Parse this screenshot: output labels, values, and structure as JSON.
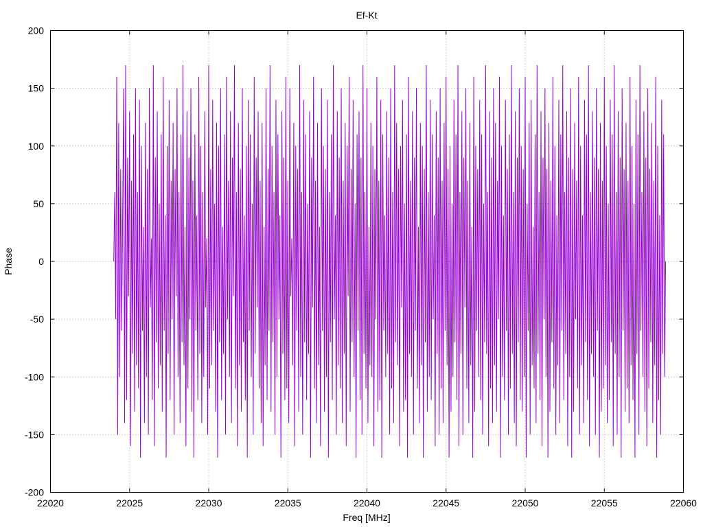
{
  "chart_data": {
    "type": "line",
    "title": "Ef-Kt",
    "xlabel": "Freq [MHz]",
    "ylabel": "Phase",
    "xlim": [
      22020,
      22060
    ],
    "ylim": [
      -200,
      200
    ],
    "xticks": [
      22020,
      22025,
      22030,
      22035,
      22040,
      22045,
      22050,
      22055,
      22060
    ],
    "yticks": [
      -200,
      -150,
      -100,
      -50,
      0,
      50,
      100,
      150,
      200
    ],
    "xtick_labels": [
      "22020",
      "22025",
      "22030",
      "22035",
      "22040",
      "22045",
      "22050",
      "22055",
      "22060"
    ],
    "ytick_labels": [
      "-200",
      "-150",
      "-100",
      "-50",
      "0",
      "50",
      "100",
      "150",
      "200"
    ],
    "grid": true,
    "color": "#9400d3",
    "series": [
      {
        "x_start": 22024.0,
        "x_step": 0.0625,
        "values": [
          0,
          60,
          -50,
          160,
          -150,
          120,
          -100,
          80,
          -60,
          40,
          150,
          -140,
          170,
          -120,
          90,
          -30,
          130,
          -160,
          70,
          -80,
          110,
          -130,
          150,
          -90,
          60,
          -110,
          140,
          -170,
          100,
          -60,
          30,
          -140,
          120,
          -100,
          80,
          -150,
          150,
          -40,
          20,
          -120,
          170,
          -160,
          90,
          -70,
          130,
          -110,
          50,
          -90,
          110,
          -130,
          160,
          -60,
          40,
          -170,
          100,
          -80,
          140,
          -120,
          70,
          -50,
          120,
          -150,
          80,
          -30,
          150,
          -100,
          60,
          -140,
          110,
          -70,
          170,
          -90,
          30,
          -160,
          130,
          -110,
          90,
          -50,
          150,
          -130,
          70,
          -170,
          110,
          -60,
          40,
          -120,
          160,
          -80,
          100,
          -140,
          60,
          -100,
          130,
          -40,
          20,
          -150,
          170,
          -110,
          80,
          -90,
          140,
          -60,
          50,
          -130,
          120,
          -170,
          100,
          -70,
          150,
          -120,
          30,
          -80,
          110,
          -150,
          160,
          -50,
          70,
          -100,
          130,
          -140,
          90,
          -30,
          170,
          -110,
          60,
          -160,
          120,
          -90,
          80,
          -130,
          150,
          -70,
          40,
          -120,
          100,
          -170,
          140,
          -60,
          110,
          -100,
          50,
          -150,
          160,
          -80,
          90,
          -40,
          130,
          -110,
          70,
          -140,
          120,
          -160,
          30,
          -90,
          150,
          -120,
          80,
          -60,
          170,
          -130,
          100,
          -70,
          60,
          -150,
          140,
          -100,
          110,
          -50,
          40,
          -170,
          130,
          -80,
          90,
          -120,
          160,
          -110,
          70,
          -140,
          150,
          -30,
          20,
          -90,
          120,
          -160,
          100,
          -60,
          80,
          -130,
          170,
          -100,
          60,
          -150,
          140,
          -70,
          110,
          -120,
          50,
          -80,
          130,
          -170,
          90,
          -40,
          160,
          -110,
          70,
          -140,
          120,
          -90,
          30,
          -160,
          150,
          -60,
          100,
          -130,
          80,
          -100,
          140,
          -170,
          60,
          -70,
          110,
          -120,
          170,
          -50,
          40,
          -150,
          130,
          -90,
          90,
          -110,
          150,
          -140,
          70,
          -80,
          120,
          -160,
          100,
          -30,
          160,
          -130,
          80,
          -70,
          140,
          -100,
          50,
          -170,
          110,
          -60,
          130,
          -120,
          90,
          -150,
          170,
          -80,
          60,
          -110,
          150,
          -140,
          30,
          -90,
          120,
          -100,
          100,
          -160,
          80,
          -50,
          160,
          -130,
          70,
          -120,
          140,
          -170,
          110,
          -60,
          40,
          -100,
          130,
          -80,
          90,
          -150,
          150,
          -110,
          60,
          -140,
          170,
          -70,
          120,
          -90,
          80,
          -160,
          100,
          -40,
          140,
          -130,
          50,
          -120,
          110,
          -170,
          160,
          -80,
          70,
          -100,
          130,
          -150,
          90,
          -60,
          150,
          -110,
          30,
          -140,
          120,
          -90,
          100,
          -170,
          80,
          -70,
          170,
          -130,
          60,
          -100,
          140,
          -120,
          110,
          -50,
          40,
          -160,
          130,
          -80,
          90,
          -150,
          150,
          -110,
          70,
          -140,
          120,
          -60,
          160,
          -90,
          80,
          -170,
          100,
          -130,
          50,
          -100,
          140,
          -70,
          110,
          -120,
          170,
          -160,
          60,
          -80,
          130,
          -150,
          90,
          -40,
          150,
          -110,
          70,
          -140,
          120,
          -90,
          30,
          -170,
          160,
          -130,
          100,
          -60,
          80,
          -100,
          140,
          -120,
          110,
          -150,
          50,
          -70,
          170,
          -80,
          60,
          -160,
          130,
          -110,
          90,
          -140,
          150,
          -90,
          120,
          -130,
          70,
          -50,
          160,
          -170,
          100,
          -100,
          40,
          -120,
          140,
          -60,
          80,
          -150,
          110,
          -110,
          170,
          -80,
          60,
          -140,
          130,
          -160,
          90,
          -70,
          150,
          -120,
          100,
          -130,
          80,
          -100,
          160,
          -170,
          50,
          -60,
          120,
          -150,
          140,
          -90,
          30,
          -110,
          110,
          -140,
          170,
          -80,
          60,
          -120,
          130,
          -160,
          90,
          -50,
          150,
          -100,
          80,
          -170,
          120,
          -130,
          70,
          -70,
          160,
          -110,
          100,
          -150,
          40,
          -90,
          140,
          -140,
          110,
          -60,
          170,
          -120,
          60,
          -80,
          130,
          -160,
          90,
          -100,
          150,
          -170,
          80,
          -130,
          120,
          -50,
          70,
          -110,
          160,
          -150,
          100,
          -90,
          40,
          -140,
          140,
          -70,
          110,
          -120,
          170,
          -160,
          60,
          -80,
          130,
          -100,
          90,
          -150,
          150,
          -60,
          80,
          -170,
          120,
          -130,
          70,
          -110,
          160,
          -90,
          100,
          -140,
          50,
          -120,
          140,
          -70,
          110,
          -160,
          170,
          -80,
          60,
          -150,
          130,
          -100,
          90,
          -170,
          150,
          -60,
          80,
          -130,
          120,
          -110,
          70,
          -140,
          160,
          -90,
          100,
          -120,
          50,
          -170,
          140,
          -80,
          110,
          -150,
          170,
          -60,
          60,
          -100,
          130,
          -130,
          90,
          -160,
          150,
          -110,
          80,
          -70,
          120,
          -140,
          70,
          -90,
          160,
          -170,
          100,
          -120,
          40,
          -150,
          140,
          -80,
          110,
          -100,
          0
        ]
      }
    ]
  }
}
